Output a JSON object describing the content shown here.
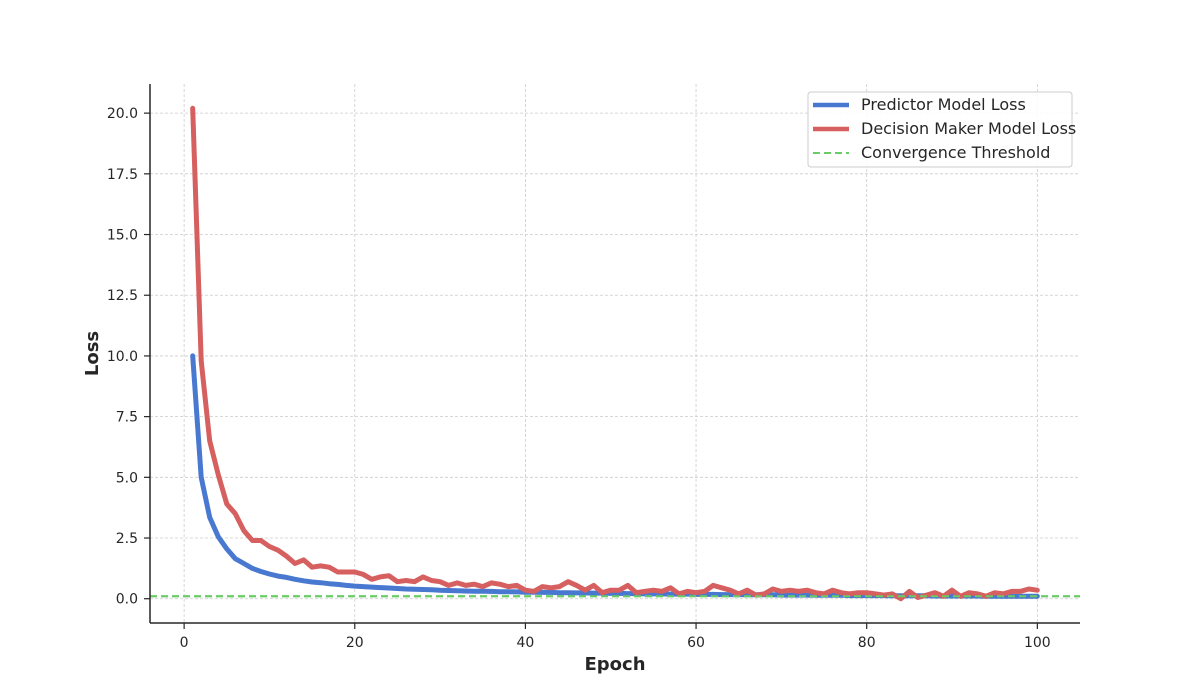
{
  "chart_data": {
    "type": "line",
    "title": "",
    "xlabel": "Epoch",
    "ylabel": "Loss",
    "xlim": [
      -4,
      105
    ],
    "ylim": [
      -1.0,
      21.2
    ],
    "xticks": [
      0,
      20,
      40,
      60,
      80,
      100
    ],
    "yticks": [
      0.0,
      2.5,
      5.0,
      7.5,
      10.0,
      12.5,
      15.0,
      17.5,
      20.0
    ],
    "grid": true,
    "legend_position": "top-right",
    "threshold": {
      "name": "Convergence Threshold",
      "value": 0.1,
      "color": "#6acc64"
    },
    "series": [
      {
        "name": "Predictor Model Loss",
        "color": "#4878d0",
        "x": [
          1,
          2,
          3,
          4,
          5,
          6,
          7,
          8,
          9,
          10,
          11,
          12,
          13,
          14,
          15,
          16,
          17,
          18,
          19,
          20,
          21,
          22,
          23,
          24,
          25,
          26,
          27,
          28,
          29,
          30,
          31,
          32,
          33,
          34,
          35,
          36,
          37,
          38,
          39,
          40,
          41,
          42,
          43,
          44,
          45,
          46,
          47,
          48,
          49,
          50,
          51,
          52,
          53,
          54,
          55,
          56,
          57,
          58,
          59,
          60,
          61,
          62,
          63,
          64,
          65,
          66,
          67,
          68,
          69,
          70,
          71,
          72,
          73,
          74,
          75,
          76,
          77,
          78,
          79,
          80,
          81,
          82,
          83,
          84,
          85,
          86,
          87,
          88,
          89,
          90,
          91,
          92,
          93,
          94,
          95,
          96,
          97,
          98,
          99,
          100
        ],
        "values": [
          10.0,
          5.0,
          3.35,
          2.55,
          2.05,
          1.65,
          1.45,
          1.25,
          1.12,
          1.02,
          0.93,
          0.88,
          0.8,
          0.74,
          0.69,
          0.66,
          0.62,
          0.59,
          0.55,
          0.52,
          0.5,
          0.48,
          0.46,
          0.44,
          0.42,
          0.4,
          0.39,
          0.38,
          0.37,
          0.35,
          0.34,
          0.33,
          0.32,
          0.31,
          0.31,
          0.3,
          0.29,
          0.29,
          0.28,
          0.27,
          0.27,
          0.26,
          0.26,
          0.25,
          0.25,
          0.24,
          0.24,
          0.23,
          0.23,
          0.22,
          0.22,
          0.21,
          0.21,
          0.2,
          0.2,
          0.2,
          0.19,
          0.19,
          0.19,
          0.18,
          0.18,
          0.18,
          0.17,
          0.17,
          0.17,
          0.16,
          0.16,
          0.16,
          0.16,
          0.15,
          0.15,
          0.15,
          0.15,
          0.14,
          0.14,
          0.14,
          0.14,
          0.13,
          0.13,
          0.13,
          0.13,
          0.13,
          0.12,
          0.12,
          0.12,
          0.12,
          0.12,
          0.11,
          0.11,
          0.11,
          0.11,
          0.11,
          0.11,
          0.1,
          0.1,
          0.1,
          0.1,
          0.1,
          0.1,
          0.1
        ]
      },
      {
        "name": "Decision Maker Model Loss",
        "color": "#d65f5f",
        "x": [
          1,
          2,
          3,
          4,
          5,
          6,
          7,
          8,
          9,
          10,
          11,
          12,
          13,
          14,
          15,
          16,
          17,
          18,
          19,
          20,
          21,
          22,
          23,
          24,
          25,
          26,
          27,
          28,
          29,
          30,
          31,
          32,
          33,
          34,
          35,
          36,
          37,
          38,
          39,
          40,
          41,
          42,
          43,
          44,
          45,
          46,
          47,
          48,
          49,
          50,
          51,
          52,
          53,
          54,
          55,
          56,
          57,
          58,
          59,
          60,
          61,
          62,
          63,
          64,
          65,
          66,
          67,
          68,
          69,
          70,
          71,
          72,
          73,
          74,
          75,
          76,
          77,
          78,
          79,
          80,
          81,
          82,
          83,
          84,
          85,
          86,
          87,
          88,
          89,
          90,
          91,
          92,
          93,
          94,
          95,
          96,
          97,
          98,
          99,
          100
        ],
        "values": [
          20.2,
          9.8,
          6.5,
          5.1,
          3.9,
          3.5,
          2.8,
          2.4,
          2.4,
          2.15,
          2.0,
          1.75,
          1.45,
          1.6,
          1.3,
          1.35,
          1.3,
          1.1,
          1.1,
          1.1,
          1.0,
          0.8,
          0.9,
          0.95,
          0.7,
          0.75,
          0.7,
          0.9,
          0.75,
          0.7,
          0.55,
          0.65,
          0.55,
          0.6,
          0.5,
          0.65,
          0.6,
          0.5,
          0.55,
          0.35,
          0.3,
          0.5,
          0.45,
          0.5,
          0.7,
          0.55,
          0.35,
          0.55,
          0.25,
          0.35,
          0.35,
          0.55,
          0.25,
          0.3,
          0.35,
          0.3,
          0.45,
          0.2,
          0.3,
          0.25,
          0.3,
          0.55,
          0.45,
          0.35,
          0.2,
          0.35,
          0.15,
          0.2,
          0.4,
          0.3,
          0.35,
          0.3,
          0.35,
          0.25,
          0.2,
          0.35,
          0.25,
          0.2,
          0.25,
          0.25,
          0.2,
          0.15,
          0.2,
          0.0,
          0.3,
          0.05,
          0.15,
          0.25,
          0.1,
          0.35,
          0.1,
          0.25,
          0.2,
          0.1,
          0.25,
          0.2,
          0.3,
          0.3,
          0.4,
          0.35
        ]
      }
    ]
  }
}
